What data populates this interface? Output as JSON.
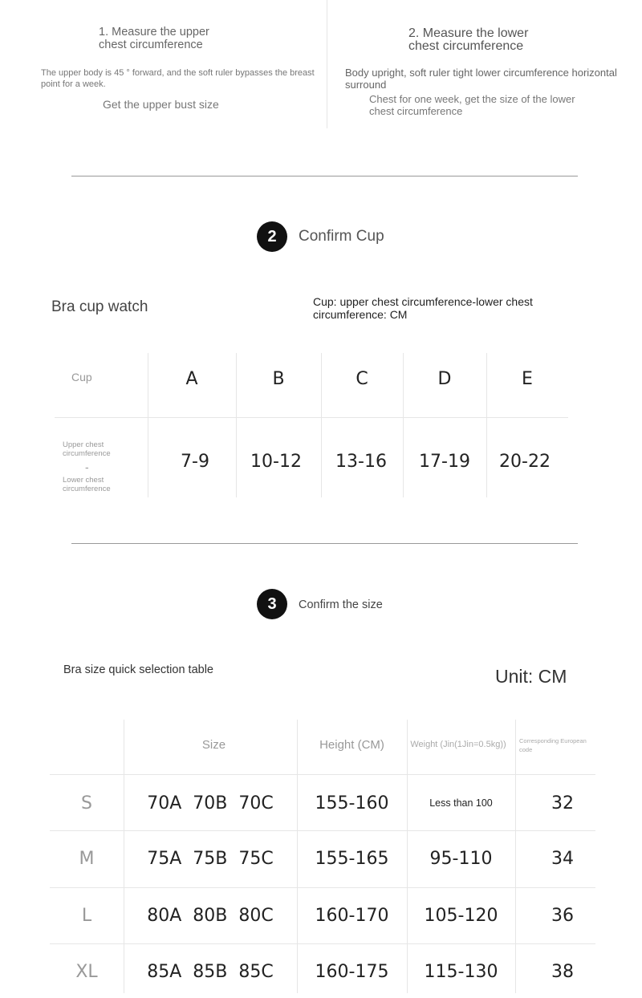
{
  "measure": {
    "step1": {
      "title": "1. Measure the upper chest circumference",
      "desc": "The upper body is 45 ° forward, and the soft ruler bypasses the breast point for a week.",
      "result": "Get the upper bust size"
    },
    "step2": {
      "title": "2. Measure the lower chest circumference",
      "desc": "Body upright, soft ruler tight lower circumference horizontal surround",
      "result": "Chest for one week, get the size of the lower chest circumference"
    }
  },
  "confirm_cup": {
    "number": "2",
    "heading": "Confirm Cup",
    "table_title": "Bra cup watch",
    "formula": "Cup: upper chest circumference-lower chest circumference: CM",
    "header_label": "Cup",
    "row_label_top": "Upper chest circumference",
    "row_label_minus": "-",
    "row_label_bottom": "Lower chest circumference",
    "cups": [
      "A",
      "B",
      "C",
      "D",
      "E"
    ],
    "differences": [
      "7-9",
      "10-12",
      "13-16",
      "17-19",
      "20-22"
    ]
  },
  "confirm_size": {
    "number": "3",
    "heading": "Confirm the size",
    "table_title": "Bra size quick selection table",
    "unit": "Unit: CM",
    "columns": [
      "",
      "Size",
      "Height (CM)",
      "Weight (Jin(1Jin=0.5kg))",
      "Corresponding European code"
    ],
    "rows": [
      [
        "S",
        "70A  70B  70C",
        "155-160",
        "Less than 100",
        "32"
      ],
      [
        "M",
        "75A  75B  75C",
        "155-165",
        "95-110",
        "34"
      ],
      [
        "L",
        "80A  80B  80C",
        "160-170",
        "105-120",
        "36"
      ],
      [
        "XL",
        "85A  85B  85C",
        "160-175",
        "115-130",
        "38"
      ]
    ]
  }
}
